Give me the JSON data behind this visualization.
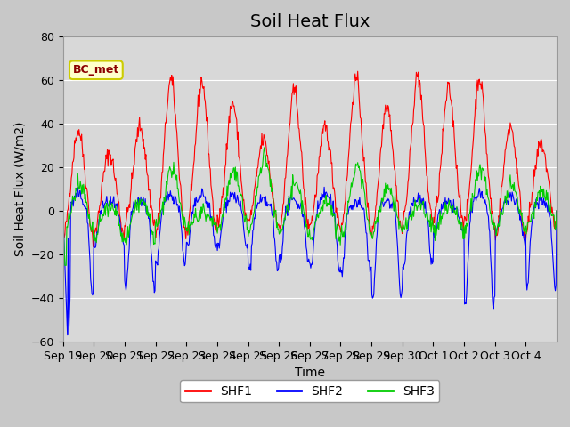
{
  "title": "Soil Heat Flux",
  "xlabel": "Time",
  "ylabel": "Soil Heat Flux (W/m2)",
  "ylim": [
    -60,
    80
  ],
  "yticks": [
    -60,
    -40,
    -20,
    0,
    20,
    40,
    60,
    80
  ],
  "annotation_label": "BC_met",
  "colors": {
    "SHF1": "#ff0000",
    "SHF2": "#0000ff",
    "SHF3": "#00cc00"
  },
  "legend_labels": [
    "SHF1",
    "SHF2",
    "SHF3"
  ],
  "n_days": 16,
  "points_per_day": 48,
  "x_tick_labels": [
    "Sep 19",
    "Sep 20",
    "Sep 21",
    "Sep 22",
    "Sep 23",
    "Sep 24",
    "Sep 25",
    "Sep 26",
    "Sep 27",
    "Sep 28",
    "Sep 29",
    "Sep 30",
    "Oct 1",
    "Oct 2",
    "Oct 3",
    "Oct 4"
  ],
  "title_fontsize": 14,
  "label_fontsize": 10,
  "tick_fontsize": 9
}
